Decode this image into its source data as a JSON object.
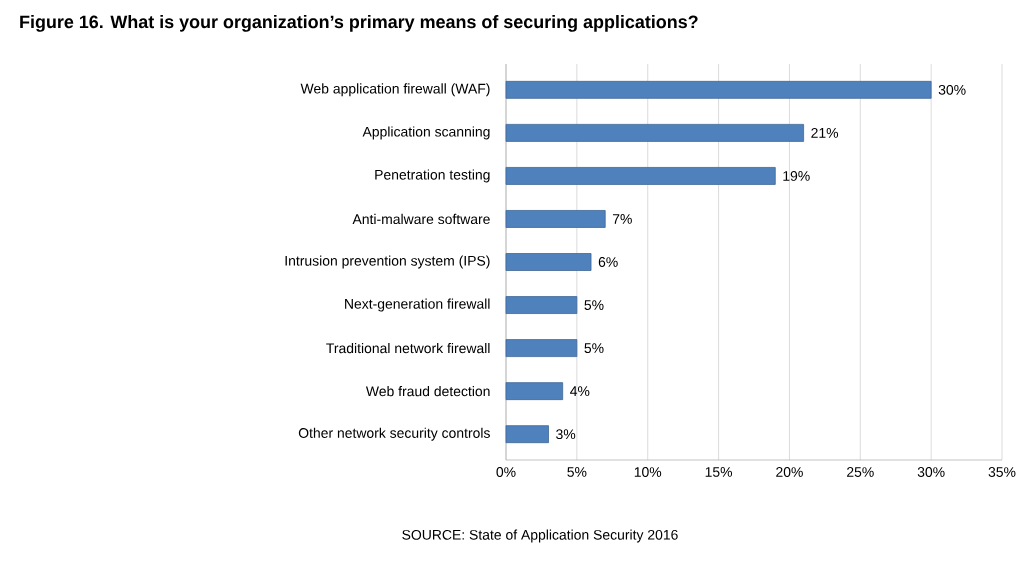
{
  "chart_data": {
    "type": "bar",
    "orientation": "horizontal",
    "title": "Figure 16. What is your organization’s primary means of securing applications?",
    "categories": [
      "Web application firewall (WAF)",
      "Application scanning",
      "Penetration testing",
      "Anti-malware software",
      "Intrusion prevention system (IPS)",
      "Next-generation firewall",
      "Traditional network firewall",
      "Web fraud detection",
      "Other network security controls"
    ],
    "values": [
      30,
      21,
      19,
      7,
      6,
      5,
      5,
      4,
      3
    ],
    "value_labels": [
      "30%",
      "21%",
      "19%",
      "7%",
      "6%",
      "5%",
      "5%",
      "4%",
      "3%"
    ],
    "color": "#4f81bd",
    "xlim": [
      0,
      35
    ],
    "xticks": [
      {
        "value": 0,
        "label": "0%"
      },
      {
        "value": 5,
        "label": "5%"
      },
      {
        "value": 10,
        "label": "10%"
      },
      {
        "value": 15,
        "label": "15%"
      },
      {
        "value": 20,
        "label": "20%"
      },
      {
        "value": 25,
        "label": "25%"
      },
      {
        "value": 30,
        "label": "30%"
      },
      {
        "value": 35,
        "label": "35%"
      }
    ],
    "grid": "x",
    "annotations": [
      "SOURCE: State of Application Security 2016"
    ]
  }
}
